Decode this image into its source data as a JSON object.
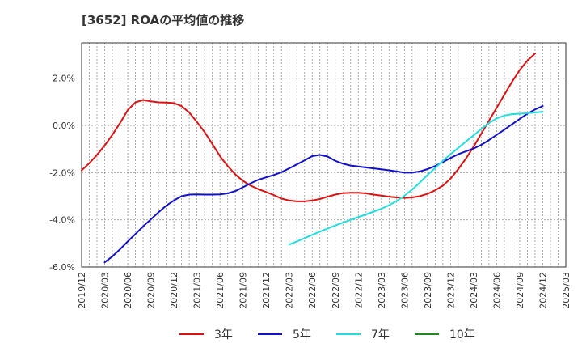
{
  "chart_data": {
    "type": "line",
    "title": "[3652]  ROAの平均値の推移",
    "xlabel": "",
    "ylabel": "",
    "x_ticks": [
      "2019/12",
      "2020/03",
      "2020/06",
      "2020/09",
      "2020/12",
      "2021/03",
      "2021/06",
      "2021/09",
      "2021/12",
      "2022/03",
      "2022/06",
      "2022/09",
      "2022/12",
      "2023/03",
      "2023/06",
      "2023/09",
      "2023/12",
      "2024/03",
      "2024/06",
      "2024/09",
      "2024/12",
      "2025/03"
    ],
    "y_ticks": [
      2.0,
      0.0,
      -2.0,
      -4.0,
      -6.0
    ],
    "y_tick_labels": [
      "2.0%",
      "0.0%",
      "-2.0%",
      "-4.0%",
      "-6.0%"
    ],
    "ylim": [
      -6.0,
      3.5
    ],
    "grid": true,
    "legend_position": "bottom",
    "series": [
      {
        "name": "3年",
        "color": "#dd1111",
        "points": [
          [
            "2019/12",
            -1.9
          ],
          [
            "2020/01",
            -1.6
          ],
          [
            "2020/02",
            -1.25
          ],
          [
            "2020/03",
            -0.85
          ],
          [
            "2020/04",
            -0.4
          ],
          [
            "2020/05",
            0.1
          ],
          [
            "2020/06",
            0.65
          ],
          [
            "2020/07",
            0.98
          ],
          [
            "2020/08",
            1.08
          ],
          [
            "2020/09",
            1.02
          ],
          [
            "2020/10",
            0.98
          ],
          [
            "2020/11",
            0.97
          ],
          [
            "2020/12",
            0.95
          ],
          [
            "2020/01b",
            0.82
          ],
          [
            "2021/02",
            0.55
          ],
          [
            "2021/03",
            0.15
          ],
          [
            "2021/04",
            -0.28
          ],
          [
            "2021/05",
            -0.78
          ],
          [
            "2021/06",
            -1.3
          ],
          [
            "2021/07",
            -1.72
          ],
          [
            "2021/08",
            -2.08
          ],
          [
            "2021/09",
            -2.35
          ],
          [
            "2021/10",
            -2.55
          ],
          [
            "2021/11",
            -2.7
          ],
          [
            "2021/12",
            -2.82
          ],
          [
            "2022/01",
            -2.95
          ],
          [
            "2022/02",
            -3.1
          ],
          [
            "2022/03",
            -3.18
          ],
          [
            "2022/04",
            -3.22
          ],
          [
            "2022/05",
            -3.22
          ],
          [
            "2022/06",
            -3.18
          ],
          [
            "2022/07",
            -3.12
          ],
          [
            "2022/08",
            -3.02
          ],
          [
            "2022/09",
            -2.93
          ],
          [
            "2022/10",
            -2.87
          ],
          [
            "2022/11",
            -2.85
          ],
          [
            "2022/12",
            -2.85
          ],
          [
            "2023/01",
            -2.88
          ],
          [
            "2023/02",
            -2.93
          ],
          [
            "2023/03",
            -2.97
          ],
          [
            "2023/04",
            -3.02
          ],
          [
            "2023/05",
            -3.05
          ],
          [
            "2023/06",
            -3.07
          ],
          [
            "2023/07",
            -3.05
          ],
          [
            "2023/08",
            -3.0
          ],
          [
            "2023/09",
            -2.9
          ],
          [
            "2023/10",
            -2.75
          ],
          [
            "2023/11",
            -2.55
          ],
          [
            "2023/12",
            -2.25
          ],
          [
            "2024/01",
            -1.85
          ],
          [
            "2024/02",
            -1.4
          ],
          [
            "2024/03",
            -0.9
          ],
          [
            "2024/04",
            -0.35
          ],
          [
            "2024/05",
            0.2
          ],
          [
            "2024/06",
            0.75
          ],
          [
            "2024/07",
            1.3
          ],
          [
            "2024/08",
            1.85
          ],
          [
            "2024/09",
            2.35
          ],
          [
            "2024/10",
            2.75
          ],
          [
            "2024/11",
            3.05
          ]
        ]
      },
      {
        "name": "5年",
        "color": "#1111cc",
        "points": [
          [
            "2020/03",
            -5.8
          ],
          [
            "2020/04",
            -5.55
          ],
          [
            "2020/05",
            -5.25
          ],
          [
            "2020/06",
            -4.92
          ],
          [
            "2020/07",
            -4.6
          ],
          [
            "2020/08",
            -4.28
          ],
          [
            "2020/09",
            -3.98
          ],
          [
            "2020/10",
            -3.68
          ],
          [
            "2020/11",
            -3.4
          ],
          [
            "2020/12",
            -3.18
          ],
          [
            "2021/01",
            -3.0
          ],
          [
            "2021/02",
            -2.93
          ],
          [
            "2021/03",
            -2.92
          ],
          [
            "2021/04",
            -2.93
          ],
          [
            "2021/05",
            -2.93
          ],
          [
            "2021/06",
            -2.92
          ],
          [
            "2021/07",
            -2.88
          ],
          [
            "2021/08",
            -2.78
          ],
          [
            "2021/09",
            -2.62
          ],
          [
            "2021/10",
            -2.45
          ],
          [
            "2021/11",
            -2.3
          ],
          [
            "2021/12",
            -2.2
          ],
          [
            "2022/01",
            -2.1
          ],
          [
            "2022/02",
            -1.98
          ],
          [
            "2022/03",
            -1.82
          ],
          [
            "2022/04",
            -1.65
          ],
          [
            "2022/05",
            -1.48
          ],
          [
            "2022/06",
            -1.3
          ],
          [
            "2022/07",
            -1.25
          ],
          [
            "2022/08",
            -1.32
          ],
          [
            "2022/09",
            -1.5
          ],
          [
            "2022/10",
            -1.62
          ],
          [
            "2022/11",
            -1.7
          ],
          [
            "2022/12",
            -1.74
          ],
          [
            "2023/01",
            -1.78
          ],
          [
            "2023/02",
            -1.82
          ],
          [
            "2023/03",
            -1.86
          ],
          [
            "2023/04",
            -1.9
          ],
          [
            "2023/05",
            -1.95
          ],
          [
            "2023/06",
            -2.0
          ],
          [
            "2023/07",
            -2.0
          ],
          [
            "2023/08",
            -1.95
          ],
          [
            "2023/09",
            -1.85
          ],
          [
            "2023/10",
            -1.72
          ],
          [
            "2023/11",
            -1.55
          ],
          [
            "2023/12",
            -1.38
          ],
          [
            "2024/01",
            -1.22
          ],
          [
            "2024/02",
            -1.1
          ],
          [
            "2024/03",
            -0.98
          ],
          [
            "2024/04",
            -0.82
          ],
          [
            "2024/05",
            -0.62
          ],
          [
            "2024/06",
            -0.4
          ],
          [
            "2024/07",
            -0.18
          ],
          [
            "2024/08",
            0.05
          ],
          [
            "2024/09",
            0.28
          ],
          [
            "2024/10",
            0.5
          ],
          [
            "2024/11",
            0.68
          ],
          [
            "2024/12",
            0.82
          ]
        ]
      },
      {
        "name": "7年",
        "color": "#22dddd",
        "points": [
          [
            "2022/03",
            -5.05
          ],
          [
            "2022/04",
            -4.92
          ],
          [
            "2022/05",
            -4.78
          ],
          [
            "2022/06",
            -4.64
          ],
          [
            "2022/07",
            -4.5
          ],
          [
            "2022/08",
            -4.37
          ],
          [
            "2022/09",
            -4.24
          ],
          [
            "2022/10",
            -4.12
          ],
          [
            "2022/11",
            -4.0
          ],
          [
            "2022/12",
            -3.88
          ],
          [
            "2023/01",
            -3.77
          ],
          [
            "2023/02",
            -3.65
          ],
          [
            "2023/03",
            -3.53
          ],
          [
            "2023/04",
            -3.38
          ],
          [
            "2023/05",
            -3.2
          ],
          [
            "2023/06",
            -2.98
          ],
          [
            "2023/07",
            -2.72
          ],
          [
            "2023/08",
            -2.42
          ],
          [
            "2023/09",
            -2.1
          ],
          [
            "2023/10",
            -1.8
          ],
          [
            "2023/11",
            -1.5
          ],
          [
            "2023/12",
            -1.22
          ],
          [
            "2024/01",
            -0.95
          ],
          [
            "2024/02",
            -0.68
          ],
          [
            "2024/03",
            -0.42
          ],
          [
            "2024/04",
            -0.15
          ],
          [
            "2024/05",
            0.1
          ],
          [
            "2024/06",
            0.3
          ],
          [
            "2024/07",
            0.42
          ],
          [
            "2024/08",
            0.48
          ],
          [
            "2024/09",
            0.5
          ],
          [
            "2024/10",
            0.52
          ],
          [
            "2024/11",
            0.55
          ],
          [
            "2024/12",
            0.58
          ]
        ]
      },
      {
        "name": "10年",
        "color": "#228822",
        "points": []
      }
    ]
  }
}
